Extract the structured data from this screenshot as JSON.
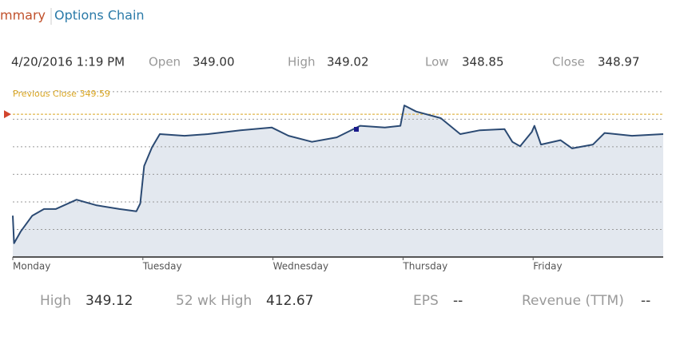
{
  "tabs": [
    "mmary",
    "Options Chain"
  ],
  "quote": {
    "datetime": "4/20/2016 1:19 PM",
    "fields": [
      {
        "label": "Open",
        "value": "349.00"
      },
      {
        "label": "High",
        "value": "349.02"
      },
      {
        "label": "Low",
        "value": "348.85"
      },
      {
        "label": "Close",
        "value": "348.97"
      }
    ]
  },
  "chart_data": {
    "type": "line",
    "x": [
      0,
      0.01,
      0.06,
      0.15,
      0.24,
      0.33,
      0.49,
      0.64,
      0.82,
      0.95,
      0.98,
      1.01,
      1.07,
      1.13,
      1.32,
      1.5,
      1.75,
      1.99,
      2.12,
      2.3,
      2.49,
      2.67,
      2.86,
      2.98,
      3.01,
      3.1,
      3.29,
      3.44,
      3.59,
      3.78,
      3.84,
      3.9,
      3.99,
      4.01,
      4.06,
      4.21,
      4.3,
      4.46,
      4.55,
      4.76,
      5
    ],
    "values": [
      347.75,
      347.25,
      347.46,
      347.75,
      347.87,
      347.87,
      348.04,
      347.94,
      347.87,
      347.83,
      347.97,
      348.65,
      348.99,
      349.23,
      349.2,
      349.23,
      349.3,
      349.35,
      349.2,
      349.09,
      349.17,
      349.38,
      349.35,
      349.38,
      349.75,
      349.64,
      349.52,
      349.23,
      349.3,
      349.32,
      349.09,
      349.01,
      349.27,
      349.38,
      349.04,
      349.12,
      348.97,
      349.04,
      349.25,
      349.2,
      349.23
    ],
    "color": "#2b4a73",
    "area_color": "#e3e8ef",
    "xlim": [
      0,
      5
    ],
    "xticks": [
      {
        "value": 0,
        "label": "Monday"
      },
      {
        "value": 1,
        "label": "Tuesday"
      },
      {
        "value": 2,
        "label": "Wednesday"
      },
      {
        "value": 3,
        "label": "Thursday"
      },
      {
        "value": 4,
        "label": "Friday"
      }
    ],
    "ylim": [
      347,
      350.2
    ],
    "yticks": [
      347,
      347.5,
      348,
      348.5,
      349,
      349.5,
      350
    ],
    "grid": true,
    "previous_close": 349.59,
    "previous_close_label": "Previous Close 349.59"
  },
  "stats": [
    {
      "label": "High",
      "value": "349.12"
    },
    {
      "label": "52 wk High",
      "value": "412.67"
    },
    {
      "label": "EPS",
      "value": "--"
    },
    {
      "label": "Revenue (TTM)",
      "value": "--"
    }
  ]
}
